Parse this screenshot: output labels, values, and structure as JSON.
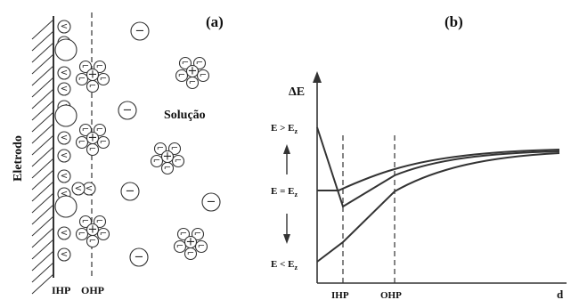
{
  "panel_a": {
    "label": "(a)",
    "electrode_label": "Eletrodo",
    "solution_label": "Solução",
    "ihp_label": "IHP",
    "ohp_label": "OHP",
    "anion_symbol": "<",
    "large_ion_symbol": "−",
    "cation_symbol": "+",
    "water_symbol": "⌐"
  },
  "panel_b": {
    "label": "(b)",
    "y_axis_label": "ΔE",
    "x_axis_label": "d",
    "ihp_label": "IHP",
    "ohp_label": "OHP",
    "level_labels": {
      "high": "E > E",
      "mid": "E = E",
      "low": "E < E",
      "subscript": "z"
    }
  },
  "colors": {
    "ink": "#333333",
    "background": "#ffffff"
  }
}
